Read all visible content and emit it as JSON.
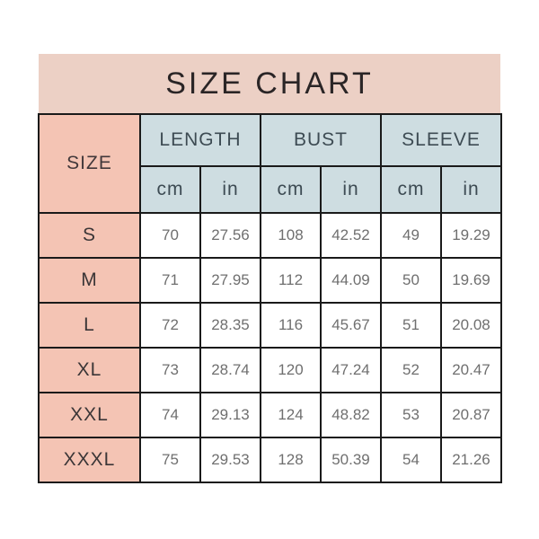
{
  "banner": {
    "title": "SIZE CHART",
    "background": "#ecd0c5",
    "text_color": "#2a2526"
  },
  "table": {
    "size_header": "SIZE",
    "groups": [
      {
        "label": "LENGTH"
      },
      {
        "label": "BUST"
      },
      {
        "label": "SLEEVE"
      }
    ],
    "unit_labels": [
      "cm",
      "in",
      "cm",
      "in",
      "cm",
      "in"
    ],
    "rows": [
      {
        "size": "S",
        "values": [
          "70",
          "27.56",
          "108",
          "42.52",
          "49",
          "19.29"
        ]
      },
      {
        "size": "M",
        "values": [
          "71",
          "27.95",
          "112",
          "44.09",
          "50",
          "19.69"
        ]
      },
      {
        "size": "L",
        "values": [
          "72",
          "28.35",
          "116",
          "45.67",
          "51",
          "20.08"
        ]
      },
      {
        "size": "XL",
        "values": [
          "73",
          "28.74",
          "120",
          "47.24",
          "52",
          "20.47"
        ]
      },
      {
        "size": "XXL",
        "values": [
          "74",
          "29.13",
          "124",
          "48.82",
          "53",
          "20.87"
        ]
      },
      {
        "size": "XXXL",
        "values": [
          "75",
          "29.53",
          "128",
          "50.39",
          "54",
          "21.26"
        ]
      }
    ],
    "colors": {
      "size_column_bg": "#f4c4b4",
      "header_bg": "#cedde1",
      "border": "#1a1a1a",
      "value_text": "#6f6f6f",
      "header_text": "#3d4b53"
    }
  },
  "chart_data": {
    "type": "table",
    "title": "SIZE CHART",
    "columns": [
      "SIZE",
      "LENGTH cm",
      "LENGTH in",
      "BUST cm",
      "BUST in",
      "SLEEVE cm",
      "SLEEVE in"
    ],
    "rows": [
      [
        "S",
        70,
        27.56,
        108,
        42.52,
        49,
        19.29
      ],
      [
        "M",
        71,
        27.95,
        112,
        44.09,
        50,
        19.69
      ],
      [
        "L",
        72,
        28.35,
        116,
        45.67,
        51,
        20.08
      ],
      [
        "XL",
        73,
        28.74,
        120,
        47.24,
        52,
        20.47
      ],
      [
        "XXL",
        74,
        29.13,
        124,
        48.82,
        53,
        20.87
      ],
      [
        "XXXL",
        75,
        29.53,
        128,
        50.39,
        54,
        21.26
      ]
    ]
  }
}
